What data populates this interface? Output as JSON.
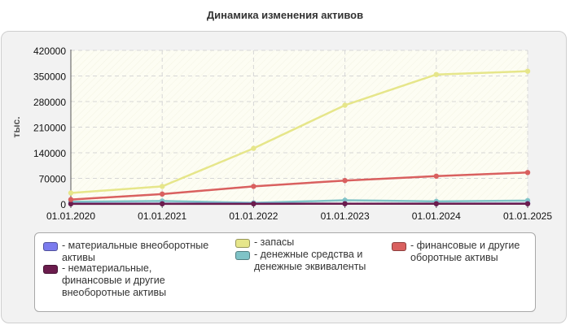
{
  "chart_data": {
    "type": "line",
    "title": "Динамика изменения активов",
    "ylabel": "тыс.",
    "xlabel": "",
    "x": [
      "01.01.2020",
      "01.01.2021",
      "01.01.2022",
      "01.01.2023",
      "01.01.2024",
      "01.01.2025"
    ],
    "yticks": [
      "0",
      "70000",
      "140000",
      "210000",
      "280000",
      "350000",
      "420000"
    ],
    "ylim": [
      0,
      420000
    ],
    "grid": true,
    "legend_position": "bottom",
    "series": [
      {
        "name": "- материальные внеоборотные активы",
        "color": "#7b7bee",
        "values": [
          800,
          900,
          700,
          800,
          900,
          1000
        ]
      },
      {
        "name": "- запасы",
        "color": "#e6e68a",
        "values": [
          30000,
          48000,
          152000,
          270000,
          354000,
          363000
        ]
      },
      {
        "name": "- финансовые и другие оборотные активы",
        "color": "#d9605f",
        "values": [
          12000,
          27000,
          48000,
          64000,
          76000,
          86000
        ]
      },
      {
        "name": "- нематериальные, финансовые и другие внеоборотные активы",
        "color": "#6b1c4d",
        "values": [
          300,
          400,
          400,
          500,
          500,
          500
        ]
      },
      {
        "name": "- денежные средства и денежные эквиваленты",
        "color": "#7fc3c7",
        "values": [
          6000,
          8000,
          3000,
          10000,
          7000,
          9000
        ]
      }
    ]
  }
}
